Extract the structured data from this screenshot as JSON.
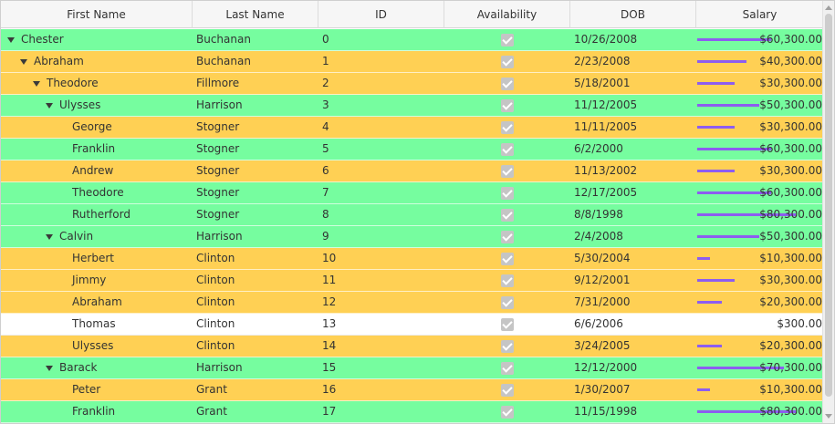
{
  "columns": [
    {
      "label": "First Name"
    },
    {
      "label": "Last Name"
    },
    {
      "label": "ID"
    },
    {
      "label": "Availability"
    },
    {
      "label": "DOB"
    },
    {
      "label": "Salary"
    }
  ],
  "colors": {
    "green": "#76fd9f",
    "orange": "#ffd054",
    "white": "#ffffff",
    "bar": "#8d5df0"
  },
  "rows": [
    {
      "first": "Chester",
      "last": "Buchanan",
      "id": "0",
      "available": true,
      "dob": "10/26/2008",
      "salary": "$60,300.00",
      "salary_value": 60300,
      "level": 0,
      "expanded": true,
      "color": "green"
    },
    {
      "first": "Abraham",
      "last": "Buchanan",
      "id": "1",
      "available": true,
      "dob": "2/23/2008",
      "salary": "$40,300.00",
      "salary_value": 40300,
      "level": 1,
      "expanded": true,
      "color": "orange"
    },
    {
      "first": "Theodore",
      "last": "Fillmore",
      "id": "2",
      "available": true,
      "dob": "5/18/2001",
      "salary": "$30,300.00",
      "salary_value": 30300,
      "level": 2,
      "expanded": true,
      "color": "orange"
    },
    {
      "first": "Ulysses",
      "last": "Harrison",
      "id": "3",
      "available": true,
      "dob": "11/12/2005",
      "salary": "$50,300.00",
      "salary_value": 50300,
      "level": 3,
      "expanded": true,
      "color": "green"
    },
    {
      "first": "George",
      "last": "Stogner",
      "id": "4",
      "available": true,
      "dob": "11/11/2005",
      "salary": "$30,300.00",
      "salary_value": 30300,
      "level": 4,
      "expanded": false,
      "color": "orange"
    },
    {
      "first": "Franklin",
      "last": "Stogner",
      "id": "5",
      "available": true,
      "dob": "6/2/2000",
      "salary": "$60,300.00",
      "salary_value": 60300,
      "level": 4,
      "expanded": false,
      "color": "green"
    },
    {
      "first": "Andrew",
      "last": "Stogner",
      "id": "6",
      "available": true,
      "dob": "11/13/2002",
      "salary": "$30,300.00",
      "salary_value": 30300,
      "level": 4,
      "expanded": false,
      "color": "orange"
    },
    {
      "first": "Theodore",
      "last": "Stogner",
      "id": "7",
      "available": true,
      "dob": "12/17/2005",
      "salary": "$60,300.00",
      "salary_value": 60300,
      "level": 4,
      "expanded": false,
      "color": "green"
    },
    {
      "first": "Rutherford",
      "last": "Stogner",
      "id": "8",
      "available": true,
      "dob": "8/8/1998",
      "salary": "$80,300.00",
      "salary_value": 80300,
      "level": 4,
      "expanded": false,
      "color": "green"
    },
    {
      "first": "Calvin",
      "last": "Harrison",
      "id": "9",
      "available": true,
      "dob": "2/4/2008",
      "salary": "$50,300.00",
      "salary_value": 50300,
      "level": 3,
      "expanded": true,
      "color": "green"
    },
    {
      "first": "Herbert",
      "last": "Clinton",
      "id": "10",
      "available": true,
      "dob": "5/30/2004",
      "salary": "$10,300.00",
      "salary_value": 10300,
      "level": 4,
      "expanded": false,
      "color": "orange"
    },
    {
      "first": "Jimmy",
      "last": "Clinton",
      "id": "11",
      "available": true,
      "dob": "9/12/2001",
      "salary": "$30,300.00",
      "salary_value": 30300,
      "level": 4,
      "expanded": false,
      "color": "orange"
    },
    {
      "first": "Abraham",
      "last": "Clinton",
      "id": "12",
      "available": true,
      "dob": "7/31/2000",
      "salary": "$20,300.00",
      "salary_value": 20300,
      "level": 4,
      "expanded": false,
      "color": "orange"
    },
    {
      "first": "Thomas",
      "last": "Clinton",
      "id": "13",
      "available": true,
      "dob": "6/6/2006",
      "salary": "$300.00",
      "salary_value": 300,
      "level": 4,
      "expanded": false,
      "color": "white"
    },
    {
      "first": "Ulysses",
      "last": "Clinton",
      "id": "14",
      "available": true,
      "dob": "3/24/2005",
      "salary": "$20,300.00",
      "salary_value": 20300,
      "level": 4,
      "expanded": false,
      "color": "orange"
    },
    {
      "first": "Barack",
      "last": "Harrison",
      "id": "15",
      "available": true,
      "dob": "12/12/2000",
      "salary": "$70,300.00",
      "salary_value": 70300,
      "level": 3,
      "expanded": true,
      "color": "green"
    },
    {
      "first": "Peter",
      "last": "Grant",
      "id": "16",
      "available": true,
      "dob": "1/30/2007",
      "salary": "$10,300.00",
      "salary_value": 10300,
      "level": 4,
      "expanded": false,
      "color": "orange"
    },
    {
      "first": "Franklin",
      "last": "Grant",
      "id": "17",
      "available": true,
      "dob": "11/15/1998",
      "salary": "$80,300.00",
      "salary_value": 80300,
      "level": 4,
      "expanded": false,
      "color": "green"
    }
  ]
}
